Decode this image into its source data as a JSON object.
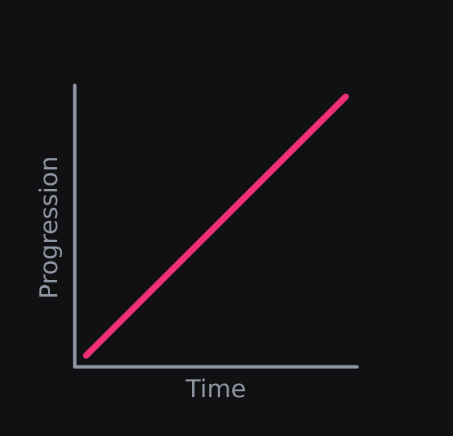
{
  "chart_data": {
    "type": "line",
    "title": "",
    "xlabel": "Time",
    "ylabel": "Progression",
    "xlim": [
      0,
      1
    ],
    "ylim": [
      0,
      1
    ],
    "grid": false,
    "legend": "none",
    "series": [
      {
        "values": [
          {
            "x": 0.04,
            "y": 0.04
          },
          {
            "x": 0.96,
            "y": 0.96
          }
        ]
      }
    ]
  },
  "colors": {
    "background": "#111114",
    "axis": "#8f96a3",
    "series": "#ef2f78"
  }
}
